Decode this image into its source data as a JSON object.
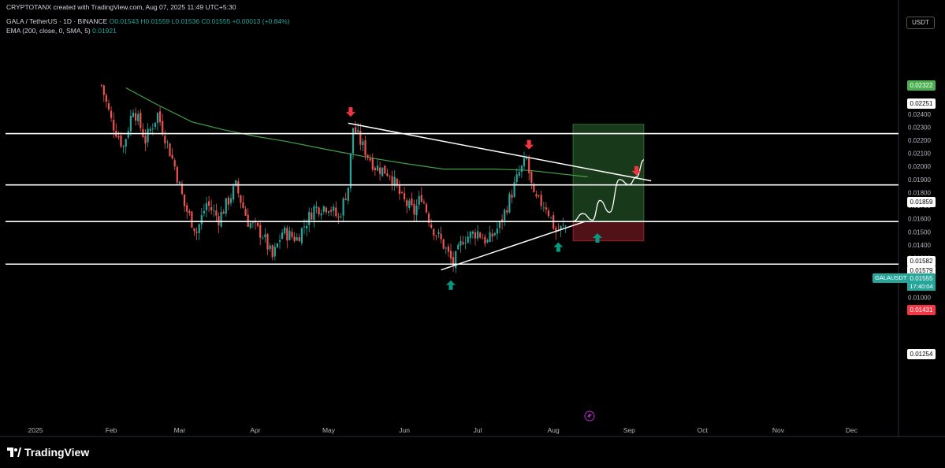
{
  "header": {
    "credit": "CRYPTOTANX created with TradingView.com, Aug 07, 2025 11:49 UTC+5:30",
    "symbol": "GALA / TetherUS · 1D · BINANCE",
    "ohlc": "O0.01543 H0.01559 L0.01536 C0.01555 +0.00013 (+0.84%)",
    "ema_label": "EMA (200, close, 0, SMA, 5)",
    "ema_value": "0.01921"
  },
  "quote_currency": "USDT",
  "brand": "TradingView",
  "price_tags": {
    "target": "0.02322",
    "res1": "0.02251",
    "res2": "0.01859",
    "mid1": "0.01582",
    "mid2": "0.01579",
    "symbol": "GALAUSDT",
    "last": "0.01555",
    "timer": "17:40:04",
    "stop": "0.01431",
    "support": "0.01254"
  },
  "chart_data": {
    "type": "candlestick",
    "y_axis": {
      "ylim": [
        0.0095,
        0.0262
      ],
      "ticks": [
        "0.02500",
        "0.02400",
        "0.02300",
        "0.02200",
        "0.02100",
        "0.02000",
        "0.01900",
        "0.01800",
        "0.01700",
        "0.01600",
        "0.01500",
        "0.01400",
        "0.01300",
        "0.01200",
        "0.01100",
        "0.01000"
      ]
    },
    "x_axis": {
      "labels": [
        "2025",
        "Feb",
        "Mar",
        "Apr",
        "May",
        "Jun",
        "Jul",
        "Aug",
        "Sep",
        "Oct",
        "Nov",
        "Dec"
      ]
    },
    "horizontal_levels": [
      0.02251,
      0.01859,
      0.01579,
      0.01254
    ],
    "trendlines": [
      {
        "name": "resistance",
        "from": [
          "May 09",
          0.0233
        ],
        "to": [
          "Sep 10",
          0.0189
        ]
      },
      {
        "name": "support",
        "from": [
          "Jun 16",
          0.0121
        ],
        "to": [
          "Aug 14",
          0.0158
        ]
      }
    ],
    "long_position": {
      "entry": 0.01579,
      "target": 0.02322,
      "stop": 0.01431,
      "start": "Aug 09",
      "end": "Sep 07"
    },
    "ema200": {
      "start": "Feb 07",
      "end": "Aug 15",
      "points": [
        [
          0,
          0.026
        ],
        [
          12,
          0.0248
        ],
        [
          27,
          0.0234
        ],
        [
          40,
          0.0228
        ],
        [
          53,
          0.0223
        ],
        [
          66,
          0.0219
        ],
        [
          82,
          0.0213
        ],
        [
          102,
          0.0206
        ],
        [
          115,
          0.0202
        ],
        [
          130,
          0.0198
        ],
        [
          150,
          0.0198
        ],
        [
          165,
          0.0197
        ],
        [
          189,
          0.0192
        ]
      ]
    },
    "price_path": [
      [
        "Jan 28",
        0.0262
      ],
      [
        "Feb 01",
        0.0235
      ],
      [
        "Feb 06",
        0.0215
      ],
      [
        "Feb 10",
        0.0245
      ],
      [
        "Feb 15",
        0.022
      ],
      [
        "Feb 20",
        0.024
      ],
      [
        "Feb 27",
        0.02
      ],
      [
        "Mar 03",
        0.017
      ],
      [
        "Mar 08",
        0.015
      ],
      [
        "Mar 12",
        0.0172
      ],
      [
        "Mar 17",
        0.016
      ],
      [
        "Mar 24",
        0.0185
      ],
      [
        "Mar 29",
        0.0158
      ],
      [
        "Apr 04",
        0.0148
      ],
      [
        "Apr 08",
        0.013
      ],
      [
        "Apr 12",
        0.015
      ],
      [
        "Apr 18",
        0.0145
      ],
      [
        "Apr 25",
        0.0168
      ],
      [
        "May 01",
        0.017
      ],
      [
        "May 05",
        0.016
      ],
      [
        "May 09",
        0.0185
      ],
      [
        "May 11",
        0.023
      ],
      [
        "May 15",
        0.0215
      ],
      [
        "May 20",
        0.02
      ],
      [
        "May 26",
        0.0195
      ],
      [
        "May 31",
        0.0175
      ],
      [
        "Jun 05",
        0.0165
      ],
      [
        "Jun 08",
        0.0178
      ],
      [
        "Jun 12",
        0.0155
      ],
      [
        "Jun 17",
        0.014
      ],
      [
        "Jun 21",
        0.0125
      ],
      [
        "Jun 25",
        0.0145
      ],
      [
        "Jul 01",
        0.015
      ],
      [
        "Jul 05",
        0.0142
      ],
      [
        "Jul 10",
        0.0155
      ],
      [
        "Jul 14",
        0.0175
      ],
      [
        "Jul 18",
        0.0195
      ],
      [
        "Jul 21",
        0.0205
      ],
      [
        "Jul 24",
        0.0175
      ],
      [
        "Jul 29",
        0.017
      ],
      [
        "Aug 02",
        0.015
      ],
      [
        "Aug 07",
        0.01555
      ]
    ],
    "projection_path": [
      [
        "Aug 09",
        0.0158
      ],
      [
        "Aug 13",
        0.0164
      ],
      [
        "Aug 17",
        0.0159
      ],
      [
        "Aug 20",
        0.0174
      ],
      [
        "Aug 24",
        0.0165
      ],
      [
        "Aug 28",
        0.019
      ],
      [
        "Sep 01",
        0.0186
      ],
      [
        "Sep 04",
        0.0192
      ],
      [
        "Sep 07",
        0.0205
      ]
    ],
    "markers": {
      "down": [
        [
          "May 10",
          0.0241
        ],
        [
          "Jul 22",
          0.0216
        ],
        [
          "Sep 04",
          0.0196
        ]
      ],
      "up": [
        [
          "Jun 20",
          0.011
        ],
        [
          "Aug 03",
          0.0139
        ],
        [
          "Aug 19",
          0.0146
        ]
      ]
    }
  }
}
